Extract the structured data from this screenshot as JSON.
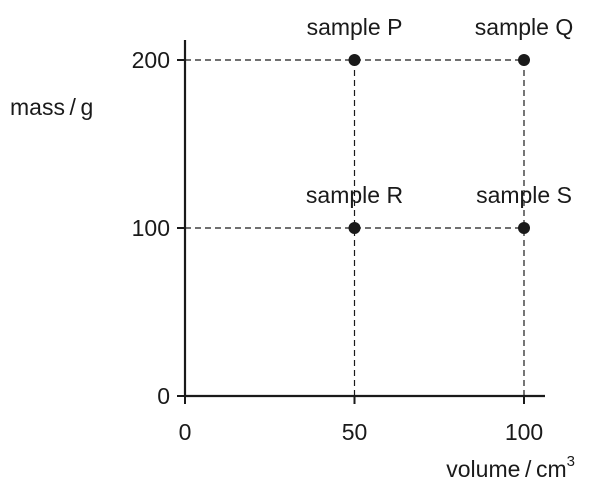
{
  "chart_data": {
    "type": "scatter",
    "title": "",
    "xlabel": "volume / cm",
    "xlabel_superscript": "3",
    "ylabel": "mass / g",
    "xlim": [
      0,
      110
    ],
    "ylim": [
      0,
      210
    ],
    "xticks": [
      0,
      50,
      100
    ],
    "yticks": [
      0,
      100,
      200
    ],
    "grid": false,
    "dashed_guides": true,
    "series": [
      {
        "points": [
          {
            "label": "sample P",
            "x": 50,
            "y": 200
          },
          {
            "label": "sample Q",
            "x": 100,
            "y": 200
          },
          {
            "label": "sample R",
            "x": 50,
            "y": 100
          },
          {
            "label": "sample S",
            "x": 100,
            "y": 100
          }
        ]
      }
    ]
  },
  "colors": {
    "ink": "#1a1a1a",
    "background": "#ffffff"
  }
}
